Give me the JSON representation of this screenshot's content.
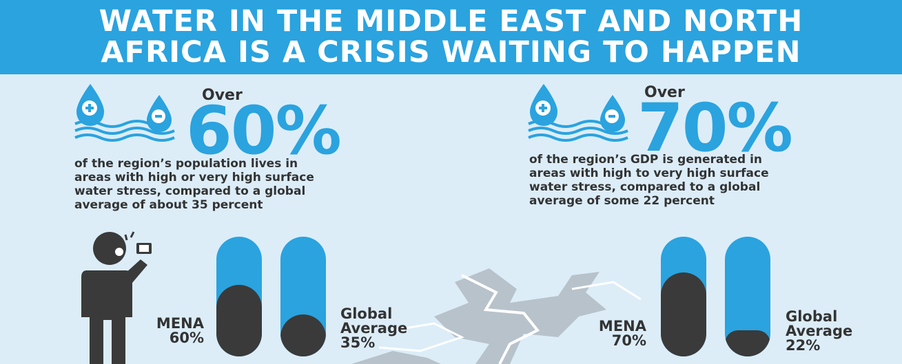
{
  "banner": {
    "line1": "WATER IN THE MIDDLE EAST AND NORTH",
    "line2": "AFRICA IS A CRISIS WAITING TO HAPPEN"
  },
  "colors": {
    "accent": "#2aa3df",
    "dark": "#3a3a3a",
    "background": "#dcedf8"
  },
  "icons": [
    "water-drop-plus-icon",
    "water-drop-minus-icon",
    "water-waves-icon",
    "person-phone-icon",
    "ground-crack-icon"
  ],
  "stats": [
    {
      "over_label": "Over",
      "big_value": "60%",
      "description": [
        "of the region’s population lives in",
        "areas with high or very high surface",
        "water stress, compared to a global",
        "average of about 35 percent"
      ],
      "bars": [
        {
          "label_line1": "MENA",
          "label_line2": "60%",
          "value": 0.6
        },
        {
          "label_line1": "Global",
          "label_line2": "Average",
          "label_line3": "35%",
          "value": 0.35
        }
      ]
    },
    {
      "over_label": "Over",
      "big_value": "70%",
      "description": [
        "of the region’s GDP is generated in",
        "areas with high to very high surface",
        "water stress, compared to a global",
        "average of some 22 percent"
      ],
      "bars": [
        {
          "label_line1": "MENA",
          "label_line2": "70%",
          "value": 0.7
        },
        {
          "label_line1": "Global",
          "label_line2": "Average",
          "label_line3": "22%",
          "value": 0.22
        }
      ]
    }
  ]
}
